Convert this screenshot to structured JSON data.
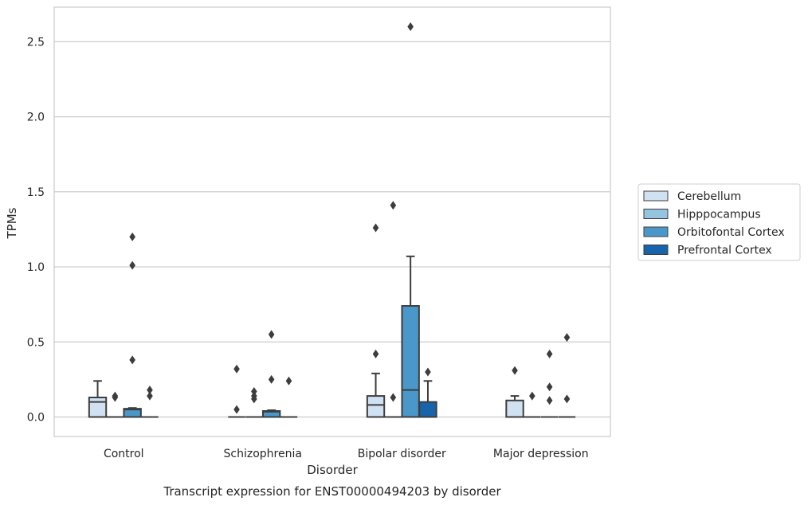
{
  "chart_data": {
    "type": "box",
    "title": "",
    "caption": "Transcript expression for ENST00000494203 by disorder",
    "xlabel": "Disorder",
    "ylabel": "TPMs",
    "ylim": [
      -0.13,
      2.73
    ],
    "yticks": [
      "0.0",
      "0.5",
      "1.0",
      "1.5",
      "2.0",
      "2.5"
    ],
    "grid": true,
    "legend_position": "right",
    "categories": [
      "Control",
      "Schizophrenia",
      "Bipolar disorder",
      "Major depression"
    ],
    "series": [
      {
        "name": "Cerebellum",
        "color": "#d0e1f2",
        "boxes": [
          {
            "q1": 0,
            "median": 0.1,
            "q3": 0.13,
            "whisker_low": 0,
            "whisker_high": 0.24,
            "outliers": []
          },
          {
            "q1": 0,
            "median": 0,
            "q3": 0,
            "whisker_low": 0,
            "whisker_high": 0,
            "outliers": [
              0.05,
              0.32
            ]
          },
          {
            "q1": 0,
            "median": 0.08,
            "q3": 0.14,
            "whisker_low": 0,
            "whisker_high": 0.29,
            "outliers": [
              0.42,
              1.26
            ]
          },
          {
            "q1": 0,
            "median": 0,
            "q3": 0.11,
            "whisker_low": 0,
            "whisker_high": 0.14,
            "outliers": [
              0.31
            ]
          }
        ]
      },
      {
        "name": "Hipppocampus",
        "color": "#94c4df",
        "boxes": [
          {
            "q1": 0,
            "median": 0,
            "q3": 0,
            "whisker_low": 0,
            "whisker_high": 0,
            "outliers": [
              0.13,
              0.14
            ]
          },
          {
            "q1": 0,
            "median": 0,
            "q3": 0,
            "whisker_low": 0,
            "whisker_high": 0,
            "outliers": [
              0.12,
              0.14,
              0.17
            ]
          },
          {
            "q1": 0,
            "median": 0,
            "q3": 0,
            "whisker_low": 0,
            "whisker_high": 0,
            "outliers": [
              0.13,
              1.41
            ]
          },
          {
            "q1": 0,
            "median": 0,
            "q3": 0,
            "whisker_low": 0,
            "whisker_high": 0,
            "outliers": [
              0.14
            ]
          }
        ]
      },
      {
        "name": "Orbitofontal Cortex",
        "color": "#4a98c9",
        "boxes": [
          {
            "q1": 0,
            "median": 0.05,
            "q3": 0.055,
            "whisker_low": 0,
            "whisker_high": 0.06,
            "outliers": [
              0.38,
              1.01,
              1.2
            ]
          },
          {
            "q1": 0,
            "median": 0.035,
            "q3": 0.04,
            "whisker_low": 0,
            "whisker_high": 0.045,
            "outliers": [
              0.25,
              0.55
            ]
          },
          {
            "q1": 0,
            "median": 0.18,
            "q3": 0.74,
            "whisker_low": 0,
            "whisker_high": 1.07,
            "outliers": [
              2.6
            ]
          },
          {
            "q1": 0,
            "median": 0,
            "q3": 0,
            "whisker_low": 0,
            "whisker_high": 0,
            "outliers": [
              0.11,
              0.2,
              0.42
            ]
          }
        ]
      },
      {
        "name": "Prefrontal Cortex",
        "color": "#1764ab",
        "boxes": [
          {
            "q1": 0,
            "median": 0,
            "q3": 0,
            "whisker_low": 0,
            "whisker_high": 0,
            "outliers": [
              0.14,
              0.18
            ]
          },
          {
            "q1": 0,
            "median": 0,
            "q3": 0,
            "whisker_low": 0,
            "whisker_high": 0,
            "outliers": [
              0.24
            ]
          },
          {
            "q1": 0,
            "median": 0,
            "q3": 0.1,
            "whisker_low": 0,
            "whisker_high": 0.24,
            "outliers": [
              0.3
            ]
          },
          {
            "q1": 0,
            "median": 0,
            "q3": 0,
            "whisker_low": 0,
            "whisker_high": 0,
            "outliers": [
              0.12,
              0.53
            ]
          }
        ]
      }
    ]
  }
}
